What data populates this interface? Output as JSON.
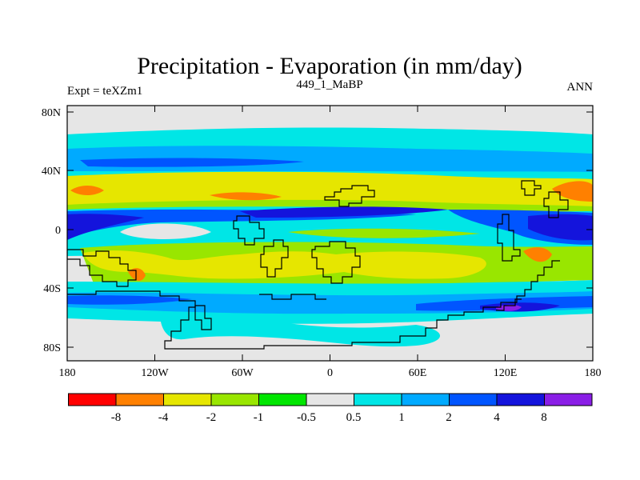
{
  "title": "Precipitation - Evaporation (in mm/day)",
  "subtitle_left": "Expt = teXZm1",
  "subtitle_center": "449_1_MaBP",
  "subtitle_right": "ANN",
  "y_ticks": [
    "80N",
    "40N",
    "0",
    "40S",
    "80S"
  ],
  "x_ticks": [
    "180",
    "120W",
    "60W",
    "0",
    "60E",
    "120E",
    "180"
  ],
  "colorbar": {
    "labels": [
      "-8",
      "-4",
      "-2",
      "-1",
      "-0.5",
      "0.5",
      "1",
      "2",
      "4",
      "8"
    ],
    "colors": [
      "#ff0000",
      "#ff8000",
      "#e6e600",
      "#99e600",
      "#00e600",
      "#e6e6e6",
      "#00e6e6",
      "#00aaff",
      "#0055ff",
      "#1414dc",
      "#8a1ee6"
    ]
  },
  "palette": {
    "gray": "#e6e6e6",
    "cyan": "#00e6e6",
    "light_blue": "#00aaff",
    "blue": "#0055ff",
    "dark_blue": "#1414dc",
    "yellow": "#e6e600",
    "light_green": "#99e600",
    "green": "#00e600",
    "orange": "#ff8000",
    "red": "#ff0000"
  }
}
